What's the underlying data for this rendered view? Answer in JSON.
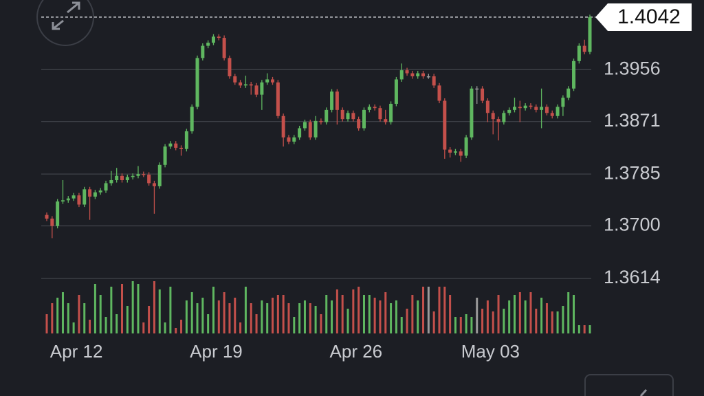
{
  "chart_data": {
    "type": "candlestick",
    "categories": [
      null,
      null,
      null,
      null,
      null,
      "Apr 12",
      null,
      null,
      null,
      null,
      null,
      null,
      null,
      null,
      null,
      null,
      null,
      null,
      null,
      null,
      null,
      null,
      null,
      null,
      null,
      null,
      null,
      null,
      null,
      null,
      null,
      "Apr 19",
      null,
      null,
      null,
      null,
      null,
      null,
      null,
      null,
      null,
      null,
      null,
      null,
      null,
      null,
      null,
      null,
      null,
      null,
      null,
      null,
      null,
      null,
      null,
      null,
      null,
      "Apr 26",
      null,
      null,
      null,
      null,
      null,
      null,
      null,
      null,
      null,
      null,
      null,
      null,
      null,
      null,
      null,
      null,
      null,
      null,
      null,
      null,
      null,
      null,
      null,
      null,
      "May 03",
      null,
      null,
      null,
      null,
      null,
      null,
      null,
      null,
      null,
      null,
      null,
      null,
      null,
      null,
      null,
      null,
      null,
      null,
      null
    ],
    "open": [
      1.3718,
      1.3712,
      1.37,
      1.374,
      1.3742,
      1.3745,
      1.375,
      1.3735,
      1.376,
      1.3748,
      1.3755,
      1.3758,
      1.377,
      1.3775,
      1.3782,
      1.3775,
      1.378,
      1.3782,
      1.3785,
      1.3784,
      1.377,
      1.3765,
      1.38,
      1.383,
      1.3835,
      1.3828,
      1.3826,
      1.3855,
      1.3895,
      1.3975,
      1.3995,
      1.4,
      1.401,
      1.4008,
      1.3975,
      1.3945,
      1.3935,
      1.393,
      1.3932,
      1.393,
      1.3915,
      1.3935,
      1.394,
      1.3935,
      1.388,
      1.3845,
      1.3838,
      1.3845,
      1.386,
      1.387,
      1.3845,
      1.3872,
      1.387,
      1.389,
      1.392,
      1.389,
      1.3875,
      1.3885,
      1.3875,
      1.386,
      1.389,
      1.3895,
      1.3893,
      1.3875,
      1.387,
      1.39,
      1.394,
      1.3955,
      1.395,
      1.3945,
      1.395,
      1.3945,
      1.3945,
      1.393,
      1.3905,
      1.3825,
      1.382,
      1.3822,
      1.3815,
      1.3845,
      1.3925,
      1.3925,
      1.3905,
      1.3885,
      1.3875,
      1.387,
      1.3885,
      1.389,
      1.3895,
      1.3893,
      1.3897,
      1.3895,
      1.389,
      1.3895,
      1.3885,
      1.388,
      1.3895,
      1.391,
      1.3925,
      1.397,
      1.3995,
      1.3985
    ],
    "high": [
      1.3722,
      1.3716,
      1.3744,
      1.3775,
      1.3749,
      1.3754,
      1.3754,
      1.3764,
      1.3764,
      1.3759,
      1.3762,
      1.3774,
      1.379,
      1.3795,
      1.3786,
      1.3784,
      1.3786,
      1.3798,
      1.3789,
      1.3788,
      1.3774,
      1.3804,
      1.3834,
      1.3839,
      1.3839,
      1.3832,
      1.3859,
      1.3899,
      1.3979,
      1.3999,
      1.4004,
      1.4014,
      1.4014,
      1.4012,
      1.3979,
      1.3949,
      1.3939,
      1.3946,
      1.3936,
      1.3934,
      1.3939,
      1.395,
      1.3944,
      1.3939,
      1.3884,
      1.3849,
      1.3849,
      1.3864,
      1.3874,
      1.3874,
      1.388,
      1.3876,
      1.3894,
      1.3924,
      1.3924,
      1.3894,
      1.3889,
      1.3889,
      1.3879,
      1.3894,
      1.3899,
      1.3899,
      1.3897,
      1.389,
      1.3904,
      1.3944,
      1.3966,
      1.3959,
      1.3954,
      1.3954,
      1.3954,
      1.3949,
      1.3949,
      1.3934,
      1.3909,
      1.3829,
      1.3826,
      1.3826,
      1.3849,
      1.3929,
      1.3929,
      1.3929,
      1.3909,
      1.3889,
      1.3879,
      1.3889,
      1.3894,
      1.391,
      1.3905,
      1.3901,
      1.3901,
      1.3899,
      1.3925,
      1.3899,
      1.3889,
      1.3899,
      1.3914,
      1.3929,
      1.3974,
      1.3999,
      1.4005,
      1.4046
    ],
    "low": [
      1.3708,
      1.368,
      1.3696,
      1.3736,
      1.3738,
      1.3741,
      1.3731,
      1.3731,
      1.371,
      1.3744,
      1.3751,
      1.3754,
      1.3766,
      1.3771,
      1.3771,
      1.3771,
      1.3776,
      1.3778,
      1.378,
      1.3766,
      1.372,
      1.3761,
      1.3796,
      1.3826,
      1.3824,
      1.3815,
      1.3822,
      1.3851,
      1.3891,
      1.3971,
      1.3991,
      1.3996,
      1.4004,
      1.3971,
      1.3941,
      1.3931,
      1.3926,
      1.3926,
      1.3915,
      1.3911,
      1.389,
      1.3931,
      1.3931,
      1.3876,
      1.383,
      1.3834,
      1.3834,
      1.3841,
      1.3856,
      1.3841,
      1.3841,
      1.3866,
      1.3866,
      1.3886,
      1.3866,
      1.3871,
      1.3871,
      1.3871,
      1.3856,
      1.3856,
      1.3886,
      1.3889,
      1.3871,
      1.3866,
      1.3866,
      1.3896,
      1.3936,
      1.3946,
      1.3941,
      1.3941,
      1.3941,
      1.3941,
      1.3926,
      1.3901,
      1.381,
      1.3812,
      1.3816,
      1.3805,
      1.3811,
      1.3841,
      1.39,
      1.3901,
      1.387,
      1.385,
      1.384,
      1.3866,
      1.3881,
      1.3886,
      1.387,
      1.3889,
      1.3891,
      1.3886,
      1.386,
      1.3881,
      1.3876,
      1.3876,
      1.388,
      1.3906,
      1.3921,
      1.3966,
      1.3981,
      1.3981
    ],
    "close": [
      1.3712,
      1.37,
      1.374,
      1.3742,
      1.3745,
      1.375,
      1.3735,
      1.376,
      1.3748,
      1.3755,
      1.3758,
      1.377,
      1.3775,
      1.3782,
      1.3775,
      1.378,
      1.3782,
      1.3785,
      1.3784,
      1.377,
      1.3765,
      1.38,
      1.383,
      1.3835,
      1.3828,
      1.3826,
      1.3855,
      1.3895,
      1.3975,
      1.3995,
      1.4,
      1.401,
      1.4008,
      1.3975,
      1.3945,
      1.3935,
      1.393,
      1.3932,
      1.393,
      1.3915,
      1.3935,
      1.394,
      1.3935,
      1.388,
      1.3845,
      1.3838,
      1.3845,
      1.386,
      1.387,
      1.3845,
      1.3872,
      1.387,
      1.389,
      1.392,
      1.389,
      1.3875,
      1.3885,
      1.3875,
      1.386,
      1.389,
      1.3895,
      1.3893,
      1.3875,
      1.387,
      1.39,
      1.394,
      1.3955,
      1.395,
      1.3945,
      1.395,
      1.3945,
      1.3945,
      1.393,
      1.3905,
      1.3825,
      1.382,
      1.3822,
      1.3815,
      1.3845,
      1.3925,
      1.3925,
      1.3905,
      1.3885,
      1.3875,
      1.387,
      1.3885,
      1.389,
      1.3895,
      1.3893,
      1.3897,
      1.3895,
      1.389,
      1.3895,
      1.3885,
      1.388,
      1.3895,
      1.391,
      1.3925,
      1.397,
      1.3995,
      1.3985,
      1.4042
    ],
    "volume": [
      35,
      55,
      65,
      75,
      55,
      20,
      70,
      55,
      25,
      90,
      70,
      30,
      85,
      35,
      90,
      50,
      95,
      90,
      20,
      50,
      95,
      80,
      20,
      85,
      10,
      25,
      60,
      75,
      55,
      65,
      35,
      85,
      60,
      75,
      55,
      65,
      20,
      85,
      55,
      35,
      60,
      55,
      65,
      70,
      70,
      55,
      30,
      55,
      60,
      55,
      50,
      35,
      70,
      60,
      80,
      70,
      45,
      80,
      85,
      70,
      70,
      65,
      60,
      75,
      55,
      60,
      30,
      45,
      70,
      60,
      85,
      85,
      40,
      85,
      85,
      70,
      30,
      30,
      35,
      30,
      65,
      45,
      60,
      40,
      70,
      45,
      60,
      70,
      75,
      60,
      75,
      45,
      65,
      55,
      40,
      40,
      50,
      75,
      70,
      15,
      15,
      15
    ],
    "up_color": "#5fb760",
    "down_color": "#c4504b",
    "flat_color": "#9a9a9a",
    "ylim": [
      1.3614,
      1.407
    ],
    "yticks": [
      1.3614,
      {
        "value": 1.37,
        "label": "1.3700"
      },
      1.3785,
      1.3871,
      1.3956
    ],
    "volume_lim": [
      0,
      100
    ],
    "last_price": 1.4042,
    "grid": true
  }
}
